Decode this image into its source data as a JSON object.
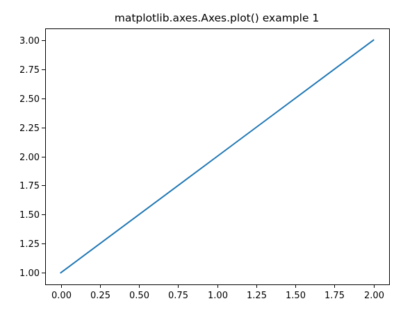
{
  "chart_data": {
    "type": "line",
    "title": "matplotlib.axes.Axes.plot() example 1",
    "xlabel": "",
    "ylabel": "",
    "series": [
      {
        "color": "#1f77b4",
        "x": [
          0,
          1,
          2
        ],
        "y": [
          1,
          2,
          3
        ]
      }
    ],
    "xlim": [
      -0.1,
      2.1
    ],
    "ylim": [
      0.9,
      3.1
    ],
    "x_ticks": [
      0.0,
      0.25,
      0.5,
      0.75,
      1.0,
      1.25,
      1.5,
      1.75,
      2.0
    ],
    "x_tick_labels": [
      "0.00",
      "0.25",
      "0.50",
      "0.75",
      "1.00",
      "1.25",
      "1.50",
      "1.75",
      "2.00"
    ],
    "y_ticks": [
      1.0,
      1.25,
      1.5,
      1.75,
      2.0,
      2.25,
      2.5,
      2.75,
      3.0
    ],
    "y_tick_labels": [
      "1.00",
      "1.25",
      "1.50",
      "1.75",
      "2.00",
      "2.25",
      "2.50",
      "2.75",
      "3.00"
    ],
    "grid": false,
    "legend": "none"
  }
}
